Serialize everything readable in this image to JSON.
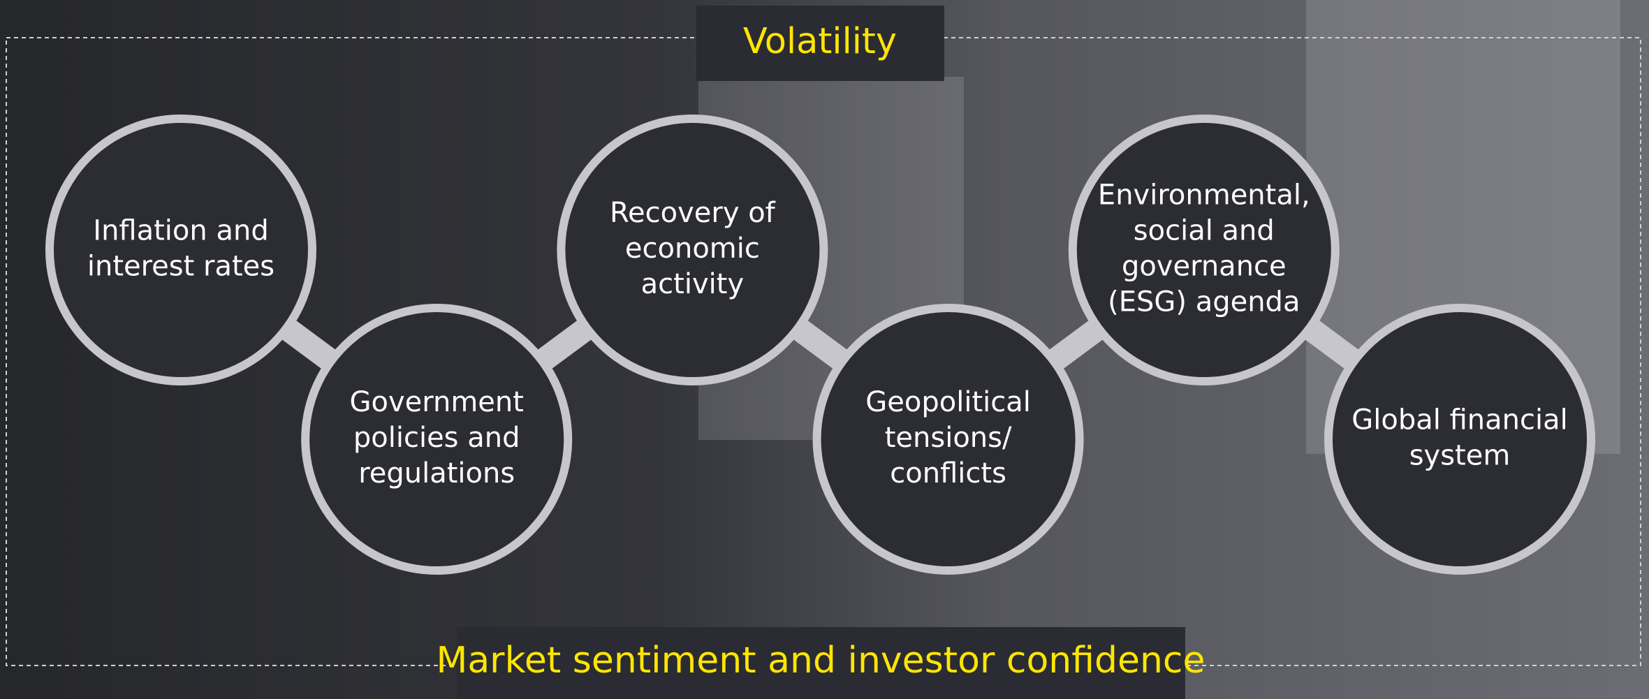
{
  "title": "Volatility",
  "footer": "Market sentiment and investor confidence",
  "nodes": [
    {
      "lines": [
        "Inflation and",
        "interest rates"
      ]
    },
    {
      "lines": [
        "Government",
        "policies and",
        "regulations"
      ]
    },
    {
      "lines": [
        "Recovery of",
        "economic",
        "activity"
      ]
    },
    {
      "lines": [
        "Geopolitical",
        "tensions/",
        "conflicts"
      ]
    },
    {
      "lines": [
        "Environmental,",
        "social and",
        "governance",
        "(ESG) agenda"
      ]
    },
    {
      "lines": [
        "Global financial",
        "system"
      ]
    }
  ]
}
